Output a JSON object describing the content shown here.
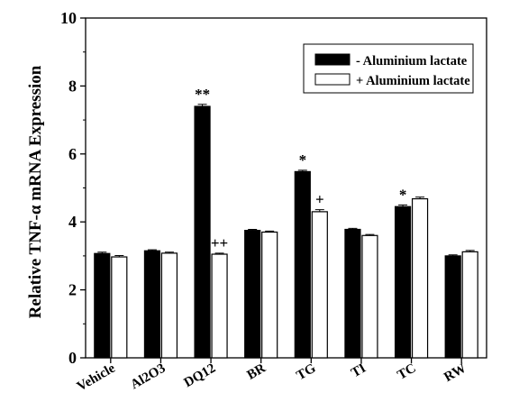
{
  "chart_data": {
    "type": "bar",
    "ylabel": "Relative TNF-α mRNA Expression",
    "xlabel": "",
    "ylim": [
      0,
      10
    ],
    "yticks": [
      0,
      2,
      4,
      6,
      8,
      10
    ],
    "categories": [
      "Vehicle",
      "Al2O3",
      "DQ12",
      "BR",
      "TG",
      "TI",
      "TC",
      "RW"
    ],
    "series": [
      {
        "name": "- Aluminium lactate",
        "color": "#000000",
        "values": [
          3.07,
          3.15,
          7.4,
          3.75,
          5.48,
          3.78,
          4.45,
          3.0
        ],
        "errors": [
          0.04,
          0.03,
          0.06,
          0.03,
          0.04,
          0.03,
          0.05,
          0.03
        ],
        "annotations": [
          "",
          "",
          "**",
          "",
          "*",
          "",
          "*",
          ""
        ]
      },
      {
        "name": "+ Aluminium lactate",
        "color": "#ffffff",
        "values": [
          2.97,
          3.08,
          3.05,
          3.7,
          4.3,
          3.6,
          4.68,
          3.12
        ],
        "errors": [
          0.04,
          0.03,
          0.03,
          0.03,
          0.06,
          0.03,
          0.05,
          0.04
        ],
        "annotations": [
          "",
          "",
          "++",
          "",
          "+",
          "",
          "",
          ""
        ]
      }
    ],
    "legend": "top-right",
    "grid": false
  }
}
